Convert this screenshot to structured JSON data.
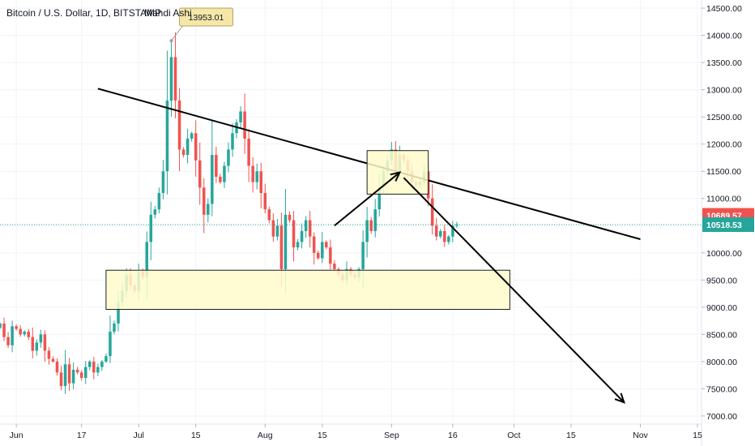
{
  "header": {
    "title": "Bitcoin / U.S. Dollar, 1D, BITSTAMP",
    "author": "Mahdi Ashi"
  },
  "chart_data": {
    "type": "candlestick",
    "symbol": "Bitcoin / U.S. Dollar",
    "interval": "1D",
    "exchange": "BITSTAMP",
    "y_axis": {
      "ticks": [
        7000,
        7500,
        8000,
        8500,
        9000,
        9500,
        10000,
        10500,
        11000,
        11500,
        12000,
        12500,
        13000,
        13500,
        14000,
        14500
      ],
      "tick_labels": [
        "7000.00",
        "7500.00",
        "8000.00",
        "8500.00",
        "9000.00",
        "9500.00",
        "10000.00",
        "10500.00",
        "11000.00",
        "11500.00",
        "12000.00",
        "12500.00",
        "13000.00",
        "13500.00",
        "14000.00",
        "14500.00"
      ],
      "range": [
        6850,
        14650
      ],
      "position": "right"
    },
    "x_axis": {
      "range": [
        "2019-05-28",
        "2019-11-16"
      ],
      "ticks": [
        {
          "date": "2019-06-01",
          "label": "Jun"
        },
        {
          "date": "2019-06-17",
          "label": "17"
        },
        {
          "date": "2019-07-01",
          "label": "Jul"
        },
        {
          "date": "2019-07-15",
          "label": "15"
        },
        {
          "date": "2019-08-01",
          "label": "Aug"
        },
        {
          "date": "2019-08-15",
          "label": "15"
        },
        {
          "date": "2019-09-01",
          "label": "Sep"
        },
        {
          "date": "2019-09-16",
          "label": "16"
        },
        {
          "date": "2019-10-01",
          "label": "Oct"
        },
        {
          "date": "2019-10-15",
          "label": "15"
        },
        {
          "date": "2019-11-01",
          "label": "Nov"
        },
        {
          "date": "2019-11-15",
          "label": "15"
        }
      ]
    },
    "start_date": "2019-05-28",
    "closes": [
      8700,
      8450,
      8300,
      8650,
      8600,
      8500,
      8550,
      8450,
      8200,
      8350,
      8500,
      8200,
      8050,
      8000,
      7800,
      7550,
      7950,
      7600,
      7850,
      7800,
      7700,
      7900,
      8000,
      7800,
      7900,
      8000,
      8100,
      8550,
      8700,
      9100,
      9300,
      9600,
      9400,
      9300,
      9650,
      9550,
      10200,
      10700,
      10800,
      11100,
      11500,
      12800,
      13600,
      12800,
      11900,
      11800,
      12100,
      12200,
      11700,
      11200,
      10700,
      10900,
      11800,
      11400,
      11300,
      11600,
      11900,
      12200,
      12400,
      12600,
      12100,
      11600,
      11300,
      11500,
      11100,
      10800,
      10600,
      10300,
      10500,
      9700,
      10700,
      10600,
      10100,
      10200,
      10400,
      10600,
      10300,
      10000,
      9900,
      10200,
      10100,
      9800,
      9700,
      9600,
      9500,
      9700,
      9600,
      9550,
      9700,
      10200,
      10600,
      10400,
      10800,
      11200,
      11500,
      11700,
      11900,
      11500,
      11800,
      11700,
      11500,
      11300,
      11250,
      11300,
      11500,
      11000,
      10500,
      10300,
      10400,
      10200,
      10300,
      10500,
      10520
    ],
    "current_price": 10518.53,
    "secondary_price": 10689.57,
    "high_marker": 13953.01,
    "horizontal_line": 10518.53,
    "drawings": [
      {
        "type": "trendline",
        "from": {
          "date": "2019-06-21",
          "price": 13020
        },
        "to": {
          "date": "2019-11-01",
          "price": 10250
        }
      },
      {
        "type": "rectangle",
        "role": "support-zone",
        "from": {
          "date": "2019-06-23",
          "price": 9680
        },
        "to": {
          "date": "2019-09-30",
          "price": 8960
        }
      },
      {
        "type": "rectangle",
        "role": "target-zone",
        "from": {
          "date": "2019-08-26",
          "price": 11880
        },
        "to": {
          "date": "2019-09-10",
          "price": 11080
        }
      },
      {
        "type": "arrow",
        "from": {
          "date": "2019-08-18",
          "price": 10500
        },
        "to": {
          "date": "2019-09-03",
          "price": 11480
        }
      },
      {
        "type": "arrow",
        "from": {
          "date": "2019-09-04",
          "price": 11380
        },
        "to": {
          "date": "2019-10-28",
          "price": 7250
        }
      }
    ]
  },
  "colors": {
    "up": "#26a69a",
    "down": "#ef5350",
    "trendline": "#000000",
    "zone_fill": "#fffbcc",
    "zone_border": "#1e1e1e",
    "price_line": "#26a69a",
    "callout_fill": "#f5e7a8",
    "callout_border": "#b8a15d"
  }
}
